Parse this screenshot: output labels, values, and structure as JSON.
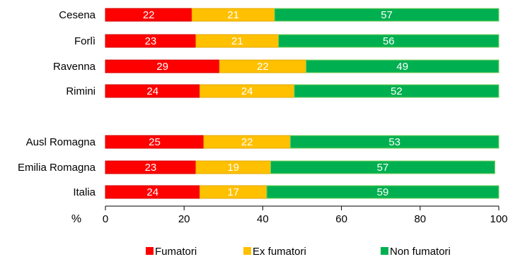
{
  "chart_data": {
    "type": "bar",
    "orientation": "horizontal",
    "stacked": true,
    "axis_unit": "%",
    "xlim": [
      0,
      100
    ],
    "xticks": [
      0,
      20,
      40,
      60,
      80,
      100
    ],
    "grid": false,
    "legend_position": "bottom",
    "groups": [
      [
        "Cesena",
        "Forlì",
        "Ravenna",
        "Rimini"
      ],
      [
        "Ausl Romagna",
        "Emilia Romagna",
        "Italia"
      ]
    ],
    "categories": [
      "Cesena",
      "Forlì",
      "Ravenna",
      "Rimini",
      "Ausl Romagna",
      "Emilia Romagna",
      "Italia"
    ],
    "series": [
      {
        "name": "Fumatori",
        "color": "#ff0000",
        "values": [
          22,
          23,
          29,
          24,
          25,
          23,
          24
        ]
      },
      {
        "name": "Ex fumatori",
        "color": "#ffc000",
        "values": [
          21,
          21,
          22,
          24,
          22,
          19,
          17
        ]
      },
      {
        "name": "Non fumatori",
        "color": "#00b050",
        "values": [
          57,
          56,
          49,
          52,
          53,
          57,
          59
        ]
      }
    ]
  }
}
